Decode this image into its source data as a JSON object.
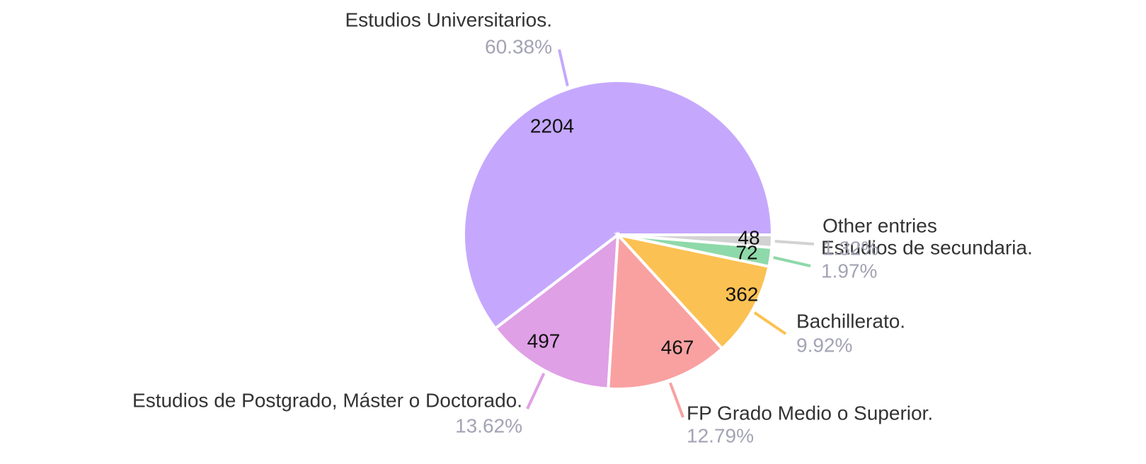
{
  "chart_data": {
    "type": "pie",
    "categories": [
      "Estudios Universitarios.",
      "Estudios de Postgrado, Máster o Doctorado.",
      "FP Grado Medio o Superior.",
      "Bachillerato.",
      "Estudios de secundaria.",
      "Other entries"
    ],
    "values": [
      2204,
      497,
      467,
      362,
      72,
      48
    ],
    "percent_labels": [
      "60.38%",
      "13.62%",
      "12.79%",
      "9.92%",
      "1.97%",
      "1.32%"
    ],
    "colors": [
      "#c5a8fd",
      "#dfa0e6",
      "#f9a1a1",
      "#fcc153",
      "#8ed9a9",
      "#d2d2d2"
    ]
  }
}
